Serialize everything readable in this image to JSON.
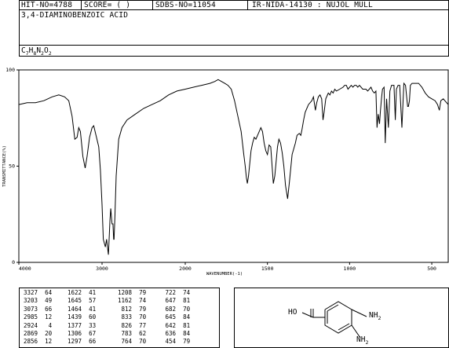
{
  "header": {
    "hit_no": "HIT-NO=4788",
    "score": "SCORE=  (  )",
    "sdbs_no": "SDBS-NO=11054",
    "ir_info": "IR-NIDA-14130 : NUJOL MULL",
    "compound_name": "3,4-DIAMINOBENZOIC ACID",
    "formula": {
      "parts": [
        "C",
        "7",
        "H",
        "8",
        "N",
        "2",
        "O",
        "2"
      ]
    }
  },
  "chart_data": {
    "type": "line",
    "xlabel": "WAVENUMBER(-1)",
    "ylabel": "TRANSMITTANCE(%)",
    "x_reversed": true,
    "xlim": [
      4000,
      400
    ],
    "ylim": [
      0,
      100
    ],
    "x_ticks": [
      4000,
      3000,
      2000,
      1500,
      1000,
      500
    ],
    "y_ticks": [
      0,
      50,
      100
    ],
    "series": [
      {
        "points": [
          [
            4000,
            82
          ],
          [
            3900,
            83
          ],
          [
            3800,
            83
          ],
          [
            3700,
            84
          ],
          [
            3600,
            86
          ],
          [
            3520,
            87
          ],
          [
            3450,
            86
          ],
          [
            3400,
            84
          ],
          [
            3360,
            76
          ],
          [
            3327,
            64
          ],
          [
            3300,
            65
          ],
          [
            3280,
            70
          ],
          [
            3260,
            68
          ],
          [
            3230,
            55
          ],
          [
            3203,
            49
          ],
          [
            3180,
            55
          ],
          [
            3150,
            65
          ],
          [
            3120,
            70
          ],
          [
            3100,
            71
          ],
          [
            3073,
            66
          ],
          [
            3040,
            60
          ],
          [
            3020,
            48
          ],
          [
            3000,
            30
          ],
          [
            2985,
            12
          ],
          [
            2960,
            8
          ],
          [
            2945,
            12
          ],
          [
            2935,
            8
          ],
          [
            2924,
            4
          ],
          [
            2915,
            12
          ],
          [
            2905,
            22
          ],
          [
            2895,
            28
          ],
          [
            2880,
            20
          ],
          [
            2869,
            20
          ],
          [
            2860,
            12
          ],
          [
            2856,
            12
          ],
          [
            2845,
            24
          ],
          [
            2830,
            45
          ],
          [
            2800,
            64
          ],
          [
            2760,
            70
          ],
          [
            2700,
            74
          ],
          [
            2600,
            77
          ],
          [
            2500,
            80
          ],
          [
            2400,
            82
          ],
          [
            2300,
            84
          ],
          [
            2200,
            87
          ],
          [
            2100,
            89
          ],
          [
            2000,
            90
          ],
          [
            1950,
            91
          ],
          [
            1900,
            92
          ],
          [
            1850,
            93
          ],
          [
            1820,
            94
          ],
          [
            1800,
            95
          ],
          [
            1780,
            94
          ],
          [
            1760,
            93
          ],
          [
            1740,
            92
          ],
          [
            1720,
            90
          ],
          [
            1700,
            84
          ],
          [
            1680,
            76
          ],
          [
            1660,
            68
          ],
          [
            1645,
            57
          ],
          [
            1635,
            50
          ],
          [
            1628,
            44
          ],
          [
            1622,
            41
          ],
          [
            1615,
            45
          ],
          [
            1600,
            58
          ],
          [
            1590,
            62
          ],
          [
            1580,
            65
          ],
          [
            1570,
            64
          ],
          [
            1560,
            66
          ],
          [
            1550,
            68
          ],
          [
            1540,
            70
          ],
          [
            1530,
            68
          ],
          [
            1520,
            62
          ],
          [
            1510,
            58
          ],
          [
            1500,
            56
          ],
          [
            1490,
            61
          ],
          [
            1480,
            60
          ],
          [
            1464,
            41
          ],
          [
            1455,
            45
          ],
          [
            1439,
            60
          ],
          [
            1430,
            64
          ],
          [
            1420,
            62
          ],
          [
            1410,
            57
          ],
          [
            1400,
            50
          ],
          [
            1390,
            40
          ],
          [
            1377,
            33
          ],
          [
            1365,
            43
          ],
          [
            1350,
            56
          ],
          [
            1330,
            62
          ],
          [
            1320,
            66
          ],
          [
            1306,
            67
          ],
          [
            1297,
            66
          ],
          [
            1290,
            69
          ],
          [
            1280,
            74
          ],
          [
            1270,
            78
          ],
          [
            1260,
            80
          ],
          [
            1250,
            82
          ],
          [
            1240,
            83
          ],
          [
            1230,
            84
          ],
          [
            1220,
            86
          ],
          [
            1208,
            79
          ],
          [
            1200,
            83
          ],
          [
            1190,
            86
          ],
          [
            1180,
            87
          ],
          [
            1170,
            85
          ],
          [
            1162,
            74
          ],
          [
            1155,
            78
          ],
          [
            1145,
            85
          ],
          [
            1130,
            88
          ],
          [
            1120,
            87
          ],
          [
            1110,
            89
          ],
          [
            1100,
            88
          ],
          [
            1090,
            90
          ],
          [
            1080,
            89
          ],
          [
            1060,
            90
          ],
          [
            1040,
            91
          ],
          [
            1030,
            92
          ],
          [
            1020,
            92
          ],
          [
            1010,
            90
          ],
          [
            1000,
            91
          ],
          [
            990,
            92
          ],
          [
            980,
            91
          ],
          [
            970,
            92
          ],
          [
            960,
            92
          ],
          [
            950,
            91
          ],
          [
            940,
            92
          ],
          [
            930,
            91
          ],
          [
            920,
            90
          ],
          [
            900,
            90
          ],
          [
            890,
            89
          ],
          [
            880,
            90
          ],
          [
            870,
            91
          ],
          [
            860,
            89
          ],
          [
            850,
            88
          ],
          [
            840,
            89
          ],
          [
            833,
            70
          ],
          [
            826,
            77
          ],
          [
            818,
            72
          ],
          [
            812,
            79
          ],
          [
            805,
            86
          ],
          [
            800,
            90
          ],
          [
            790,
            91
          ],
          [
            783,
            62
          ],
          [
            775,
            85
          ],
          [
            764,
            70
          ],
          [
            755,
            89
          ],
          [
            745,
            92
          ],
          [
            730,
            92
          ],
          [
            722,
            74
          ],
          [
            715,
            90
          ],
          [
            705,
            92
          ],
          [
            695,
            92
          ],
          [
            682,
            70
          ],
          [
            670,
            93
          ],
          [
            660,
            92
          ],
          [
            647,
            81
          ],
          [
            642,
            81
          ],
          [
            636,
            84
          ],
          [
            630,
            92
          ],
          [
            620,
            93
          ],
          [
            600,
            93
          ],
          [
            580,
            93
          ],
          [
            560,
            91
          ],
          [
            540,
            88
          ],
          [
            520,
            86
          ],
          [
            500,
            85
          ],
          [
            480,
            84
          ],
          [
            465,
            82
          ],
          [
            454,
            79
          ],
          [
            445,
            84
          ],
          [
            430,
            85
          ],
          [
            410,
            83
          ],
          [
            400,
            82
          ]
        ]
      }
    ]
  },
  "peak_table": [
    [
      [
        3327,
        64
      ],
      [
        3203,
        49
      ],
      [
        3073,
        66
      ],
      [
        2985,
        12
      ],
      [
        2924,
        4
      ],
      [
        2869,
        20
      ],
      [
        2856,
        12
      ]
    ],
    [
      [
        1622,
        41
      ],
      [
        1645,
        57
      ],
      [
        1464,
        41
      ],
      [
        1439,
        60
      ],
      [
        1377,
        33
      ],
      [
        1306,
        67
      ],
      [
        1297,
        66
      ]
    ],
    [
      [
        1208,
        79
      ],
      [
        1162,
        74
      ],
      [
        812,
        79
      ],
      [
        833,
        70
      ],
      [
        826,
        77
      ],
      [
        783,
        62
      ],
      [
        764,
        70
      ]
    ],
    [
      [
        722,
        74
      ],
      [
        647,
        81
      ],
      [
        682,
        70
      ],
      [
        645,
        84
      ],
      [
        642,
        81
      ],
      [
        636,
        84
      ],
      [
        454,
        79
      ]
    ]
  ],
  "structure": {
    "hoc_label": "HO",
    "nh2_top": "NH",
    "nh2_top_sub": "2",
    "nh2_bottom": "NH",
    "nh2_bottom_sub": "2"
  }
}
